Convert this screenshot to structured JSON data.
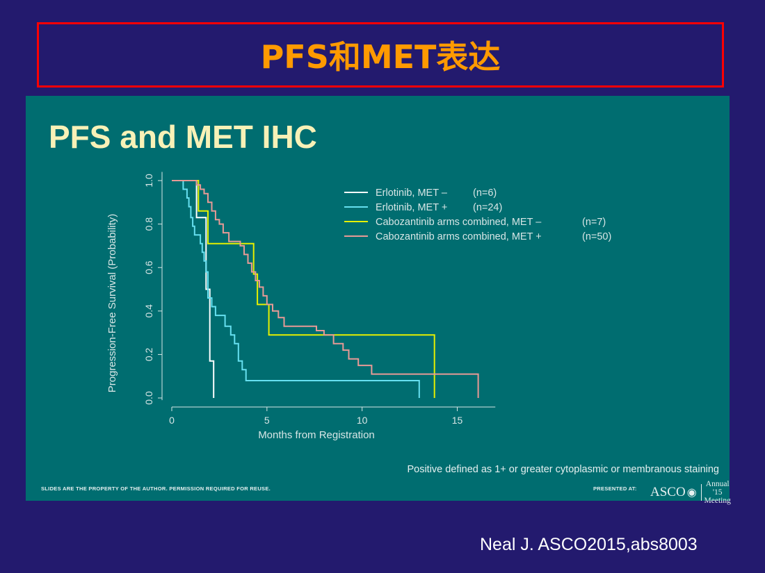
{
  "header": {
    "title": "PFS和MET表达"
  },
  "slide": {
    "title": "PFS and MET IHC",
    "footnote": "Positive defined as 1+ or greater cytoplasmic or membranous staining",
    "property_notice": "SLIDES ARE THE PROPERTY OF THE AUTHOR. PERMISSION REQUIRED FOR REUSE.",
    "presented_at": "PRESENTED AT:",
    "logo_text": "ASCO",
    "logo_line1": "Annual '15",
    "logo_line2": "Meeting"
  },
  "citation": "Neal J. ASCO2015,abs8003",
  "chart_data": {
    "type": "line",
    "step": true,
    "xlabel": "Months from Registration",
    "ylabel": "Progression-Free Survival (Probability)",
    "xlim": [
      0,
      17
    ],
    "ylim": [
      0,
      1
    ],
    "xticks": [
      0,
      5,
      10,
      15
    ],
    "yticks": [
      "0.0",
      "0.2",
      "0.4",
      "0.6",
      "0.8",
      "1.0"
    ],
    "legend_position": "top-right",
    "series": [
      {
        "name": "Erlotinib, MET –",
        "n": "(n=6)",
        "color": "#ffffff",
        "x": [
          0,
          1.3,
          1.3,
          1.8,
          1.8,
          2.0,
          2.0,
          2.2,
          2.2
        ],
        "y": [
          1.0,
          1.0,
          0.83,
          0.83,
          0.5,
          0.5,
          0.17,
          0.17,
          0.0
        ]
      },
      {
        "name": "Erlotinib, MET +",
        "n": "(n=24)",
        "color": "#66e0f0",
        "x": [
          0,
          0.6,
          0.6,
          0.8,
          0.8,
          0.9,
          0.9,
          1.0,
          1.0,
          1.1,
          1.1,
          1.2,
          1.2,
          1.5,
          1.5,
          1.6,
          1.6,
          1.7,
          1.7,
          1.8,
          1.8,
          1.9,
          1.9,
          2.1,
          2.1,
          2.3,
          2.3,
          2.8,
          2.8,
          3.1,
          3.1,
          3.3,
          3.3,
          3.5,
          3.5,
          3.7,
          3.7,
          3.9,
          3.9,
          13.0,
          13.0
        ],
        "y": [
          1.0,
          1.0,
          0.96,
          0.96,
          0.92,
          0.92,
          0.88,
          0.88,
          0.83,
          0.83,
          0.79,
          0.79,
          0.75,
          0.75,
          0.71,
          0.71,
          0.67,
          0.67,
          0.63,
          0.63,
          0.58,
          0.58,
          0.46,
          0.46,
          0.42,
          0.42,
          0.38,
          0.38,
          0.33,
          0.33,
          0.29,
          0.29,
          0.25,
          0.25,
          0.17,
          0.17,
          0.13,
          0.13,
          0.08,
          0.08,
          0.0
        ]
      },
      {
        "name": "Cabozantinib arms combined, MET –",
        "n": "(n=7)",
        "color": "#e6f000",
        "x": [
          0,
          1.4,
          1.4,
          1.9,
          1.9,
          4.3,
          4.3,
          4.5,
          4.5,
          5.1,
          5.1,
          13.8,
          13.8
        ],
        "y": [
          1.0,
          1.0,
          0.86,
          0.86,
          0.71,
          0.71,
          0.57,
          0.57,
          0.43,
          0.43,
          0.29,
          0.29,
          0.0
        ]
      },
      {
        "name": "Cabozantinib arms combined, MET +",
        "n": "(n=50)",
        "color": "#e89a96",
        "x": [
          0,
          1.3,
          1.3,
          1.5,
          1.5,
          1.7,
          1.7,
          1.9,
          1.9,
          2.1,
          2.1,
          2.3,
          2.3,
          2.5,
          2.5,
          2.7,
          2.7,
          3.0,
          3.0,
          3.6,
          3.6,
          3.8,
          3.8,
          4.0,
          4.0,
          4.2,
          4.2,
          4.4,
          4.4,
          4.6,
          4.6,
          4.8,
          4.8,
          5.0,
          5.0,
          5.3,
          5.3,
          5.6,
          5.6,
          5.9,
          5.9,
          7.6,
          7.6,
          8.0,
          8.0,
          8.5,
          8.5,
          9.0,
          9.0,
          9.3,
          9.3,
          9.8,
          9.8,
          10.5,
          10.5,
          16.1,
          16.1
        ],
        "y": [
          1.0,
          1.0,
          0.98,
          0.98,
          0.96,
          0.96,
          0.94,
          0.94,
          0.9,
          0.9,
          0.86,
          0.86,
          0.82,
          0.82,
          0.8,
          0.8,
          0.76,
          0.76,
          0.72,
          0.72,
          0.7,
          0.7,
          0.66,
          0.66,
          0.62,
          0.62,
          0.58,
          0.58,
          0.54,
          0.54,
          0.51,
          0.51,
          0.47,
          0.47,
          0.43,
          0.43,
          0.4,
          0.4,
          0.37,
          0.37,
          0.33,
          0.33,
          0.31,
          0.31,
          0.29,
          0.29,
          0.25,
          0.25,
          0.22,
          0.22,
          0.18,
          0.18,
          0.15,
          0.15,
          0.11,
          0.11,
          0.0
        ]
      }
    ]
  }
}
